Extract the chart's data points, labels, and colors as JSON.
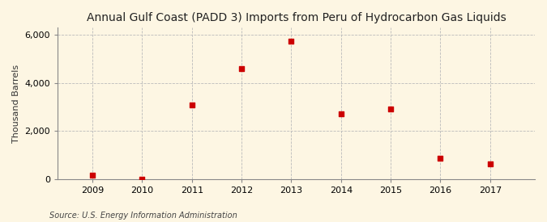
{
  "title": "Annual Gulf Coast (PADD 3) Imports from Peru of Hydrocarbon Gas Liquids",
  "ylabel": "Thousand Barrels",
  "source": "Source: U.S. Energy Information Administration",
  "years": [
    2009,
    2010,
    2011,
    2012,
    2013,
    2014,
    2015,
    2016,
    2017
  ],
  "values": [
    175,
    0,
    3100,
    4600,
    5750,
    2700,
    2900,
    875,
    625
  ],
  "ylim": [
    0,
    6300
  ],
  "yticks": [
    0,
    2000,
    4000,
    6000
  ],
  "ytick_labels": [
    "0",
    "2,000",
    "4,000",
    "6,000"
  ],
  "xlim": [
    2008.3,
    2017.9
  ],
  "marker_color": "#cc0000",
  "marker_size": 5,
  "background_color": "#fdf6e3",
  "grid_color": "#bbbbbb",
  "title_fontsize": 10,
  "label_fontsize": 8,
  "tick_fontsize": 8,
  "source_fontsize": 7
}
